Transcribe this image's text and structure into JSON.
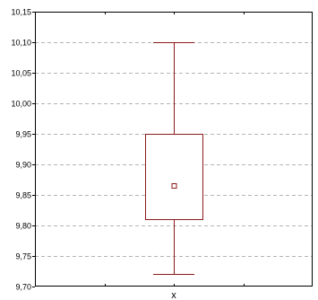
{
  "chart_data": {
    "type": "box",
    "title": "",
    "xlabel": "",
    "ylabel": "",
    "categories": [
      "x"
    ],
    "series": [
      {
        "category": "x",
        "min": 9.72,
        "q1": 9.81,
        "median": 9.865,
        "q3": 9.95,
        "max": 10.1,
        "center_marker": "median"
      }
    ],
    "ylim": [
      9.7,
      10.15
    ],
    "yticks": [
      9.7,
      9.75,
      9.8,
      9.85,
      9.9,
      9.95,
      10.0,
      10.05,
      10.1,
      10.15
    ],
    "ytick_labels": [
      "9,70",
      "9,75",
      "9,80",
      "9,85",
      "9,90",
      "9,95",
      "10,00",
      "10,05",
      "10,10",
      "10,15"
    ],
    "grid": "horizontal-dashed",
    "colors": {
      "box": "#8b1a1a",
      "grid": "#b4b4b4",
      "axis": "#000000"
    }
  }
}
